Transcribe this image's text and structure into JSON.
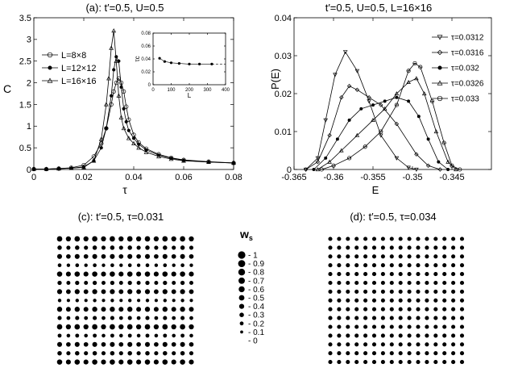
{
  "chart_data": [
    {
      "panel": "a",
      "type": "line",
      "title": "(a): t′=0.5, U=0.5",
      "xlabel": "τ",
      "ylabel": "C",
      "xlim": [
        0,
        0.08
      ],
      "ylim": [
        0,
        3.5
      ],
      "xticks": [
        0,
        0.02,
        0.04,
        0.06,
        0.08
      ],
      "xtick_labels": [
        "0",
        "0.02",
        "0.04",
        "0.06",
        "0.08"
      ],
      "yticks": [
        0,
        0.5,
        1,
        1.5,
        2,
        2.5,
        3,
        3.5
      ],
      "ytick_labels": [
        "0",
        "0.5",
        "1",
        "1.5",
        "2",
        "2.5",
        "3",
        "3.5"
      ],
      "legend_position": "top-left",
      "series": [
        {
          "name": "L=8×8",
          "marker": "circle",
          "x": [
            0,
            0.005,
            0.01,
            0.015,
            0.02,
            0.024,
            0.027,
            0.029,
            0.031,
            0.032,
            0.033,
            0.034,
            0.035,
            0.036,
            0.037,
            0.038,
            0.04,
            0.042,
            0.045,
            0.05,
            0.055,
            0.06,
            0.07,
            0.08
          ],
          "y": [
            0.01,
            0.01,
            0.02,
            0.04,
            0.1,
            0.3,
            0.6,
            0.95,
            1.5,
            1.8,
            2.0,
            2.1,
            2.0,
            1.8,
            1.45,
            1.15,
            0.8,
            0.62,
            0.48,
            0.35,
            0.27,
            0.22,
            0.18,
            0.15
          ]
        },
        {
          "name": "L=12×12",
          "marker": "star",
          "x": [
            0,
            0.005,
            0.01,
            0.015,
            0.02,
            0.024,
            0.027,
            0.029,
            0.031,
            0.032,
            0.033,
            0.034,
            0.035,
            0.036,
            0.037,
            0.038,
            0.04,
            0.042,
            0.045,
            0.05,
            0.055,
            0.06,
            0.07,
            0.08
          ],
          "y": [
            0.01,
            0.01,
            0.02,
            0.03,
            0.06,
            0.2,
            0.5,
            0.95,
            1.7,
            2.3,
            2.6,
            2.5,
            1.9,
            1.4,
            1.1,
            0.9,
            0.72,
            0.58,
            0.45,
            0.33,
            0.26,
            0.21,
            0.17,
            0.15
          ]
        },
        {
          "name": "L=16×16",
          "marker": "triangle",
          "x": [
            0,
            0.005,
            0.01,
            0.015,
            0.02,
            0.024,
            0.027,
            0.029,
            0.03,
            0.031,
            0.032,
            0.033,
            0.034,
            0.035,
            0.036,
            0.038,
            0.04,
            0.042,
            0.045,
            0.05,
            0.055,
            0.06,
            0.07,
            0.08
          ],
          "y": [
            0.01,
            0.01,
            0.02,
            0.03,
            0.05,
            0.2,
            0.7,
            1.5,
            2.1,
            2.8,
            3.2,
            2.5,
            1.7,
            1.2,
            0.95,
            0.72,
            0.6,
            0.5,
            0.4,
            0.3,
            0.24,
            0.2,
            0.17,
            0.15
          ]
        }
      ],
      "inset": {
        "xlabel": "L",
        "ylabel": "τc",
        "xlim": [
          0,
          400
        ],
        "ylim": [
          0,
          0.08
        ],
        "xticks": [
          0,
          100,
          200,
          300,
          400
        ],
        "xtick_labels": [
          "0",
          "100",
          "200",
          "300",
          "400"
        ],
        "yticks": [
          0,
          0.02,
          0.04,
          0.06,
          0.08
        ],
        "ytick_labels": [
          "0",
          "0.02",
          "0.04",
          "0.06",
          "0.08"
        ],
        "x": [
          36,
          64,
          100,
          144,
          200,
          256,
          324
        ],
        "y": [
          0.041,
          0.036,
          0.034,
          0.033,
          0.032,
          0.032,
          0.032
        ],
        "extrapolation": [
          324,
          400
        ]
      }
    },
    {
      "panel": "b",
      "type": "line",
      "title": "t′=0.5, U=0.5, L=16×16",
      "xlabel": "E",
      "ylabel": "P(E)",
      "xlim": [
        -0.365,
        -0.34
      ],
      "ylim": [
        0,
        0.04
      ],
      "xticks": [
        -0.365,
        -0.36,
        -0.355,
        -0.35,
        -0.345
      ],
      "xtick_labels": [
        "-0.365",
        "-0.36",
        "-0.355",
        "-0.35",
        "-0.345"
      ],
      "yticks": [
        0,
        0.01,
        0.02,
        0.03,
        0.04
      ],
      "ytick_labels": [
        "0",
        "0.01",
        "0.02",
        "0.03",
        "0.04"
      ],
      "legend_position": "top-right",
      "series": [
        {
          "name": "τ=0.0312",
          "marker": "tri-down",
          "x": [
            -0.3635,
            -0.362,
            -0.361,
            -0.3598,
            -0.3585,
            -0.357,
            -0.3555,
            -0.354,
            -0.352,
            -0.3505,
            -0.3495
          ],
          "y": [
            0,
            0.003,
            0.013,
            0.025,
            0.031,
            0.026,
            0.018,
            0.009,
            0.003,
            0.0005,
            0
          ]
        },
        {
          "name": "τ=0.0316",
          "marker": "diamond",
          "x": [
            -0.3635,
            -0.362,
            -0.3605,
            -0.359,
            -0.358,
            -0.357,
            -0.3555,
            -0.354,
            -0.352,
            -0.3495,
            -0.348,
            -0.3465
          ],
          "y": [
            0,
            0.002,
            0.009,
            0.019,
            0.022,
            0.021,
            0.019,
            0.017,
            0.012,
            0.004,
            0.001,
            0
          ]
        },
        {
          "name": "τ=0.032",
          "marker": "star",
          "x": [
            -0.3625,
            -0.361,
            -0.3595,
            -0.358,
            -0.3565,
            -0.355,
            -0.3535,
            -0.352,
            -0.3505,
            -0.3492,
            -0.348,
            -0.3467,
            -0.3455
          ],
          "y": [
            0,
            0.003,
            0.008,
            0.013,
            0.016,
            0.017,
            0.018,
            0.019,
            0.018,
            0.014,
            0.008,
            0.002,
            0
          ]
        },
        {
          "name": "τ=0.0326",
          "marker": "triangle",
          "x": [
            -0.362,
            -0.3605,
            -0.359,
            -0.357,
            -0.355,
            -0.3535,
            -0.352,
            -0.3505,
            -0.3495,
            -0.3485,
            -0.347,
            -0.3455,
            -0.3445
          ],
          "y": [
            0,
            0.002,
            0.005,
            0.009,
            0.013,
            0.016,
            0.02,
            0.023,
            0.024,
            0.02,
            0.01,
            0.002,
            0
          ]
        },
        {
          "name": "τ=0.033",
          "marker": "circle-cross",
          "x": [
            -0.3615,
            -0.36,
            -0.358,
            -0.356,
            -0.354,
            -0.352,
            -0.3505,
            -0.3497,
            -0.349,
            -0.3475,
            -0.346,
            -0.345,
            -0.344
          ],
          "y": [
            0,
            0.001,
            0.003,
            0.006,
            0.01,
            0.017,
            0.026,
            0.028,
            0.027,
            0.018,
            0.007,
            0.001,
            0
          ]
        }
      ]
    },
    {
      "panel": "c",
      "type": "scatter",
      "title": "(c): t′=0.5, τ=0.031",
      "grid_size": 16,
      "description_values": "ws per site, shown as dot size",
      "row_pattern_ws": [
        0.9,
        0.55,
        0.7,
        0.35,
        0.85,
        0.5,
        0.75,
        0.3,
        0.8,
        0.45,
        0.9,
        0.4,
        0.7,
        0.55,
        0.85,
        0.35
      ]
    },
    {
      "panel": "d",
      "type": "scatter",
      "title": "(d): t′=0.5, τ=0.034",
      "grid_size": 16,
      "uniform_ws": 0.45
    }
  ],
  "ws_legend": {
    "title": "w",
    "title_subscript": "s",
    "levels": [
      1,
      0.9,
      0.8,
      0.7,
      0.6,
      0.5,
      0.4,
      0.3,
      0.2,
      0.1,
      0
    ],
    "labels": [
      "1",
      "0.9",
      "0.8",
      "0.7",
      "0.6",
      "0.5",
      "0.4",
      "0.3",
      "0.2",
      "0.1",
      "0"
    ]
  }
}
